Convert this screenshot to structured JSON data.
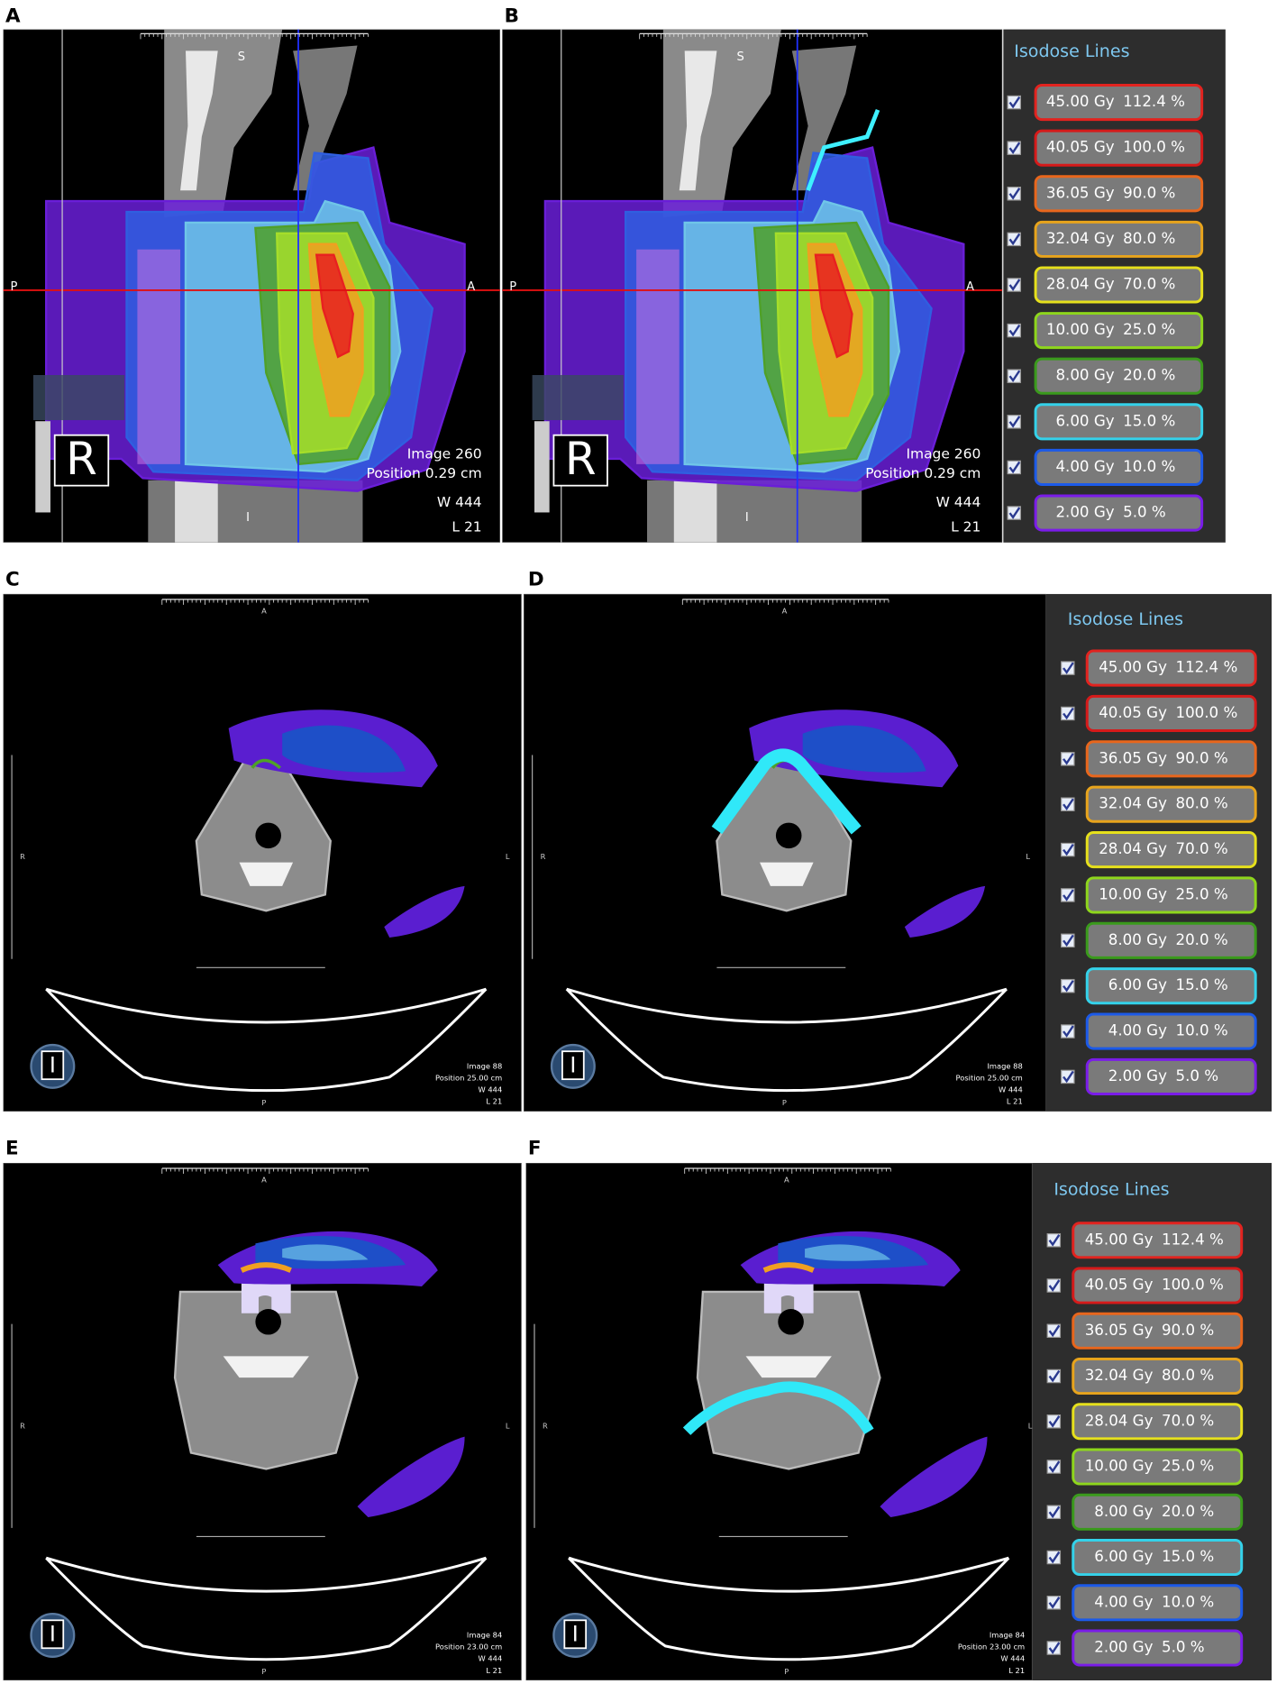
{
  "panels": [
    {
      "label": "A",
      "orientation": [
        "S",
        "P",
        "A",
        "I"
      ],
      "marker": "R",
      "info": [
        "Image  260",
        "Position  0.29 cm",
        "W  444",
        "L    21"
      ]
    },
    {
      "label": "B",
      "orientation": [
        "S",
        "P",
        "A",
        "I"
      ],
      "marker": "R",
      "info": [
        "Image  260",
        "Position  0.29 cm",
        "W  444",
        "L    21"
      ]
    },
    {
      "label": "C",
      "orientation": [
        "A",
        "R",
        "L",
        "P"
      ],
      "marker": "I",
      "info": [
        "Image  88",
        "Position  25.00 cm",
        "W  444",
        "L  21"
      ]
    },
    {
      "label": "D",
      "orientation": [
        "A",
        "R",
        "L",
        "P"
      ],
      "marker": "I",
      "info": [
        "Image  88",
        "Position  25.00 cm",
        "W  444",
        "L  21"
      ]
    },
    {
      "label": "E",
      "orientation": [
        "A",
        "R",
        "L",
        "P"
      ],
      "marker": "I",
      "info": [
        "Image  84",
        "Position  23.00 cm",
        "W  444",
        "L  21"
      ]
    },
    {
      "label": "F",
      "orientation": [
        "A",
        "R",
        "L",
        "P"
      ],
      "marker": "I",
      "info": [
        "Image  84",
        "Position  23.00 cm",
        "W  444",
        "L  21"
      ]
    }
  ],
  "isodose": {
    "title": "Isodose Lines",
    "items": [
      {
        "dose": "45.00 Gy",
        "percent": "112.4 %",
        "color": "#e2231f"
      },
      {
        "dose": "40.05 Gy",
        "percent": "100.0 %",
        "color": "#d61a1a"
      },
      {
        "dose": "36.05 Gy",
        "percent": "90.0 %",
        "color": "#e8661c"
      },
      {
        "dose": "32.04 Gy",
        "percent": "80.0 %",
        "color": "#e8a41c"
      },
      {
        "dose": "28.04 Gy",
        "percent": "70.0 %",
        "color": "#e6e01c"
      },
      {
        "dose": "10.00 Gy",
        "percent": "25.0 %",
        "color": "#8ed61c"
      },
      {
        "dose": "8.00 Gy",
        "percent": "20.0 %",
        "color": "#3a9a1c"
      },
      {
        "dose": "6.00 Gy",
        "percent": "15.0 %",
        "color": "#34d2ea"
      },
      {
        "dose": "4.00 Gy",
        "percent": "10.0 %",
        "color": "#1c5ae8"
      },
      {
        "dose": "2.00 Gy",
        "percent": "5.0 %",
        "color": "#7a1ce8"
      }
    ]
  }
}
